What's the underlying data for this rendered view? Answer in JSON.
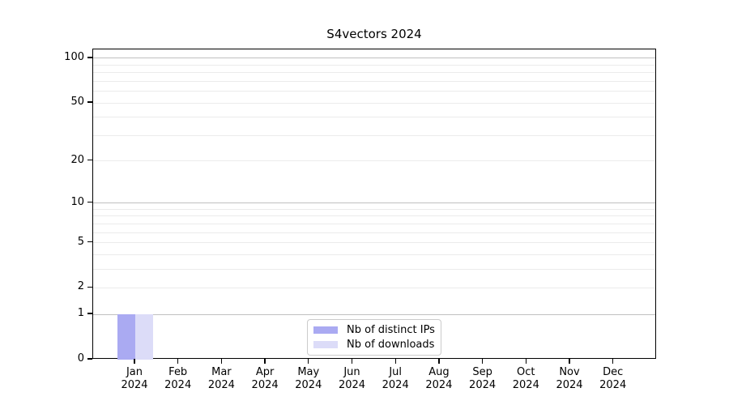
{
  "chart_data": {
    "type": "bar",
    "title": "S4vectors 2024",
    "categories": [
      "Jan 2024",
      "Feb 2024",
      "Mar 2024",
      "Apr 2024",
      "May 2024",
      "Jun 2024",
      "Jul 2024",
      "Aug 2024",
      "Sep 2024",
      "Oct 2024",
      "Nov 2024",
      "Dec 2024"
    ],
    "series": [
      {
        "name": "Nb of distinct IPs",
        "color": "#aaaaf2",
        "values": [
          1,
          0,
          0,
          0,
          0,
          0,
          0,
          0,
          0,
          0,
          0,
          0
        ]
      },
      {
        "name": "Nb of downloads",
        "color": "#dcdcf8",
        "values": [
          1,
          0,
          0,
          0,
          0,
          0,
          0,
          0,
          0,
          0,
          0,
          0
        ]
      }
    ],
    "y_axis": {
      "scale": "log10(1+x)",
      "ticks": [
        {
          "label": "0",
          "value": 0
        },
        {
          "label": "1",
          "value": 1
        },
        {
          "label": "2",
          "value": 2
        },
        {
          "label": "5",
          "value": 5
        },
        {
          "label": "10",
          "value": 10
        },
        {
          "label": "20",
          "value": 20
        },
        {
          "label": "50",
          "value": 50
        },
        {
          "label": "100",
          "value": 100
        }
      ],
      "range_top_value": 115,
      "major_gridline_values": [
        1,
        10,
        100
      ],
      "minor_gridline_values": [
        2,
        3,
        4,
        5,
        6,
        7,
        8,
        9,
        20,
        30,
        40,
        50,
        60,
        70,
        80,
        90
      ]
    },
    "grid": "horizontal",
    "legend_position": "inside-bottom-center",
    "colors": {
      "grid_major": "#c0c0c0",
      "grid_minor": "#ebebeb",
      "spine": "#000000",
      "background": "#ffffff"
    }
  }
}
